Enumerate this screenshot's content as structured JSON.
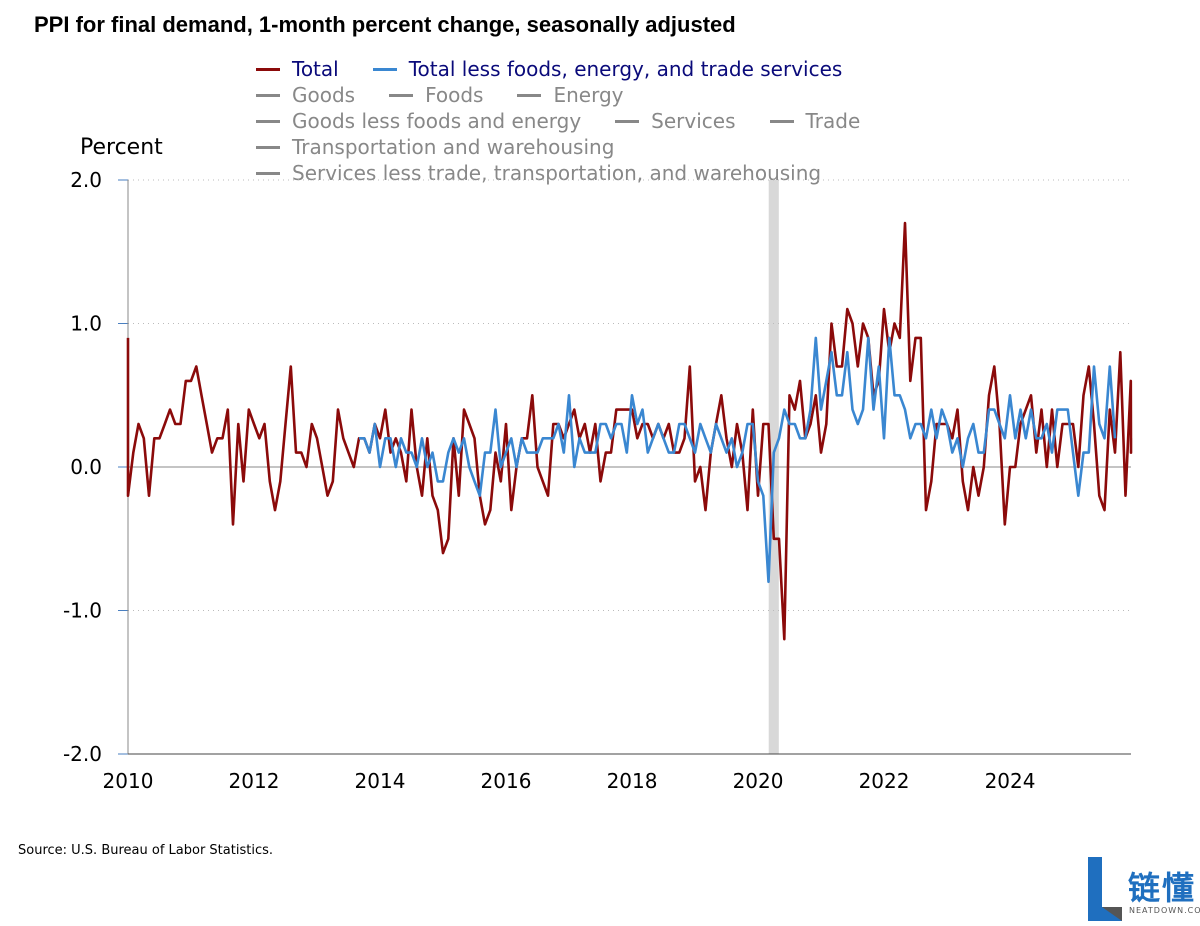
{
  "title": "PPI for final demand, 1-month percent change, seasonally adjusted",
  "source": "Source: U.S. Bureau of Labor Statistics.",
  "logo": {
    "text": "链懂",
    "subtext": "NEATDOWN.COM"
  },
  "colors": {
    "total": "#8b0a0a",
    "core": "#3a87d1",
    "inactive": "#888888",
    "recession": "#d8d8d8",
    "grid": "#bbbbbb"
  },
  "legend": {
    "rows": [
      [
        {
          "label": "Total",
          "active": true,
          "color": "#8b0a0a"
        },
        {
          "label": "Total less foods, energy, and trade services",
          "active": true,
          "color": "#3a87d1"
        }
      ],
      [
        {
          "label": "Goods",
          "active": false
        },
        {
          "label": "Foods",
          "active": false
        },
        {
          "label": "Energy",
          "active": false
        }
      ],
      [
        {
          "label": "Goods less foods and energy",
          "active": false
        },
        {
          "label": "Services",
          "active": false
        },
        {
          "label": "Trade",
          "active": false
        }
      ],
      [
        {
          "label": "Transportation and warehousing",
          "active": false
        }
      ],
      [
        {
          "label": "Services less trade, transportation, and warehousing",
          "active": false
        }
      ]
    ]
  },
  "chart_data": {
    "type": "line",
    "ylabel": "Percent",
    "ylim": [
      -2.0,
      2.0
    ],
    "yticks": [
      "2.0",
      "1.0",
      "0.0",
      "-1.0",
      "-2.0"
    ],
    "ytick_values": [
      2.0,
      1.0,
      0.0,
      -1.0,
      -2.0
    ],
    "xlim": [
      2010.0,
      2025.92
    ],
    "xticks": [
      "2010",
      "2012",
      "2014",
      "2016",
      "2018",
      "2020",
      "2022",
      "2024"
    ],
    "grid": "horizontal dotted",
    "shaded_period": {
      "start": 2020.17,
      "end": 2020.33,
      "label": "recession"
    },
    "series": [
      {
        "name": "Total",
        "start": "2009-12",
        "values": [
          0.9,
          -0.2,
          0.1,
          0.3,
          0.2,
          -0.2,
          0.2,
          0.2,
          0.3,
          0.4,
          0.3,
          0.3,
          0.6,
          0.6,
          0.7,
          0.5,
          0.3,
          0.1,
          0.2,
          0.2,
          0.4,
          -0.4,
          0.3,
          -0.1,
          0.4,
          0.3,
          0.2,
          0.3,
          -0.1,
          -0.3,
          -0.1,
          0.3,
          0.7,
          0.1,
          0.1,
          0.0,
          0.3,
          0.2,
          0.0,
          -0.2,
          -0.1,
          0.4,
          0.2,
          0.1,
          0.0,
          0.2,
          0.2,
          0.1,
          0.3,
          0.2,
          0.4,
          0.1,
          0.2,
          0.1,
          -0.1,
          0.4,
          0.0,
          -0.2,
          0.2,
          -0.2,
          -0.3,
          -0.6,
          -0.5,
          0.2,
          -0.2,
          0.4,
          0.3,
          0.2,
          -0.2,
          -0.4,
          -0.3,
          0.1,
          -0.1,
          0.3,
          -0.3,
          0.0,
          0.2,
          0.2,
          0.5,
          0.0,
          -0.1,
          -0.2,
          0.3,
          0.3,
          0.2,
          0.3,
          0.4,
          0.2,
          0.3,
          0.1,
          0.3,
          -0.1,
          0.1,
          0.1,
          0.4,
          0.4,
          0.4,
          0.4,
          0.2,
          0.3,
          0.3,
          0.2,
          0.3,
          0.2,
          0.3,
          0.1,
          0.1,
          0.2,
          0.7,
          -0.1,
          0.0,
          -0.3,
          0.1,
          0.3,
          0.5,
          0.2,
          0.0,
          0.3,
          0.1,
          -0.3,
          0.4,
          -0.2,
          0.3,
          0.3,
          -0.5,
          -0.5,
          -1.2,
          0.5,
          0.4,
          0.6,
          0.2,
          0.3,
          0.5,
          0.1,
          0.3,
          1.0,
          0.7,
          0.7,
          1.1,
          1.0,
          0.7,
          1.0,
          0.9,
          0.5,
          0.6,
          1.1,
          0.8,
          1.0,
          0.9,
          1.7,
          0.6,
          0.9,
          0.9,
          -0.3,
          -0.1,
          0.3,
          0.3,
          0.3,
          0.2,
          0.4,
          -0.1,
          -0.3,
          0.0,
          -0.2,
          0.0,
          0.5,
          0.7,
          0.3,
          -0.4,
          0.0,
          0.0,
          0.3,
          0.4,
          0.5,
          0.1,
          0.4,
          0.0,
          0.4,
          0.0,
          0.3,
          0.3,
          0.3,
          0.0,
          0.5,
          0.7,
          0.3,
          -0.2,
          -0.3,
          0.4,
          0.1,
          0.8,
          -0.2,
          0.6,
          0.1,
          0.2
        ]
      },
      {
        "name": "Total less foods, energy, and trade services",
        "start": "2013-09",
        "values": [
          0.2,
          0.2,
          0.1,
          0.3,
          0.0,
          0.2,
          0.2,
          0.0,
          0.2,
          0.1,
          0.1,
          0.0,
          0.2,
          0.0,
          0.1,
          -0.1,
          -0.1,
          0.1,
          0.2,
          0.1,
          0.2,
          0.0,
          -0.1,
          -0.2,
          0.1,
          0.1,
          0.4,
          0.0,
          0.1,
          0.2,
          0.0,
          0.2,
          0.1,
          0.1,
          0.1,
          0.2,
          0.2,
          0.2,
          0.3,
          0.1,
          0.5,
          0.0,
          0.2,
          0.1,
          0.1,
          0.1,
          0.3,
          0.3,
          0.2,
          0.3,
          0.3,
          0.1,
          0.5,
          0.3,
          0.4,
          0.1,
          0.2,
          0.3,
          0.2,
          0.1,
          0.1,
          0.3,
          0.3,
          0.2,
          0.1,
          0.3,
          0.2,
          0.1,
          0.3,
          0.2,
          0.1,
          0.2,
          0.0,
          0.1,
          0.3,
          0.3,
          -0.1,
          -0.2,
          -0.8,
          0.1,
          0.2,
          0.4,
          0.3,
          0.3,
          0.2,
          0.2,
          0.4,
          0.9,
          0.4,
          0.6,
          0.8,
          0.5,
          0.5,
          0.8,
          0.4,
          0.3,
          0.4,
          0.9,
          0.4,
          0.7,
          0.2,
          0.9,
          0.5,
          0.5,
          0.4,
          0.2,
          0.3,
          0.3,
          0.2,
          0.4,
          0.2,
          0.4,
          0.3,
          0.1,
          0.2,
          0.0,
          0.2,
          0.3,
          0.1,
          0.1,
          0.4,
          0.4,
          0.3,
          0.2,
          0.5,
          0.2,
          0.4,
          0.2,
          0.4,
          0.2,
          0.2,
          0.3,
          0.1,
          0.4,
          0.4,
          0.4,
          0.1,
          -0.2,
          0.1,
          0.1,
          0.7,
          0.3,
          0.2,
          0.7,
          0.2
        ]
      }
    ]
  }
}
